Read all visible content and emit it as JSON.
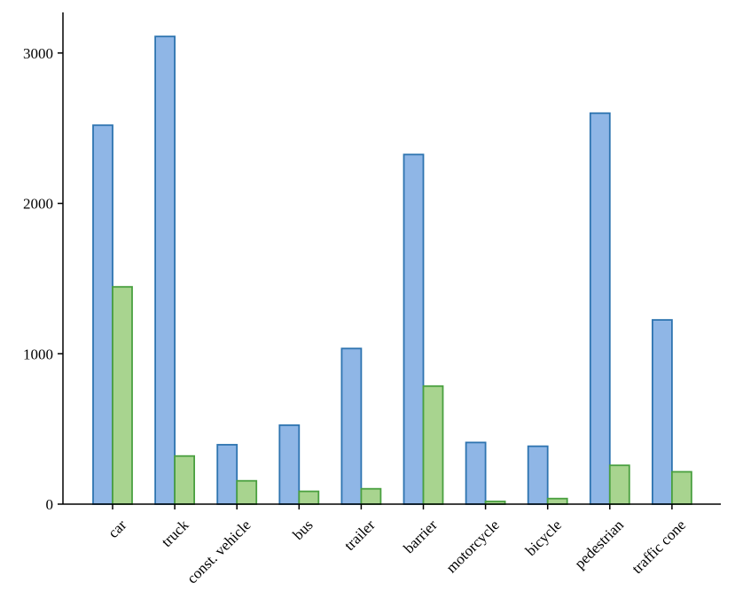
{
  "chart_data": {
    "type": "bar",
    "categories": [
      "car",
      "truck",
      "const. vehicle",
      "bus",
      "trailer",
      "barrier",
      "motorcycle",
      "bicycle",
      "pedestrian",
      "traffic cone"
    ],
    "series": [
      {
        "values": [
          2520,
          3110,
          395,
          525,
          1035,
          2325,
          410,
          385,
          2600,
          1225
        ],
        "color": "#8fb6e6",
        "edge": "#2e74b0"
      },
      {
        "values": [
          1445,
          320,
          155,
          85,
          102,
          785,
          18,
          37,
          258,
          215
        ],
        "color": "#a8d48f",
        "edge": "#4aa040"
      }
    ],
    "ylim": [
      0,
      3270
    ],
    "yticks": [
      0,
      1000,
      2000,
      3000
    ],
    "ytick_labels": [
      "0",
      "1000",
      "2000",
      "3000"
    ],
    "grid": false,
    "title": "",
    "xlabel": "",
    "ylabel": ""
  }
}
